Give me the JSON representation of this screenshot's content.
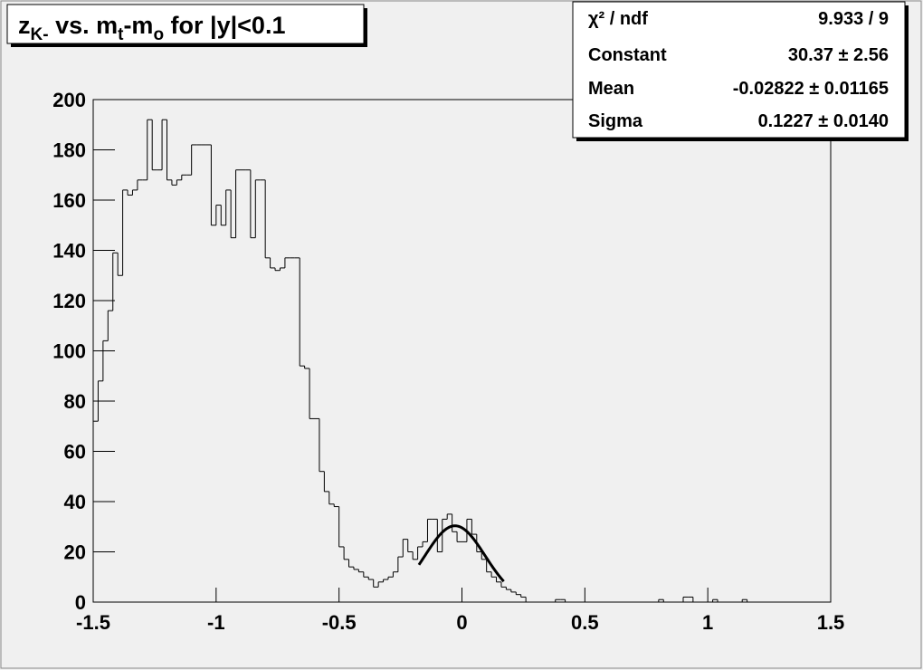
{
  "chart_data": {
    "type": "histogram",
    "title": [
      {
        "text": "z"
      },
      {
        "text": "K-",
        "sub": true
      },
      {
        "text": " vs. m"
      },
      {
        "text": "t",
        "sub": true
      },
      {
        "text": "-m"
      },
      {
        "text": "o",
        "sub": true
      },
      {
        "text": " for |y|<0.1"
      }
    ],
    "bins": [
      -1.5,
      -1.48,
      -1.46,
      -1.44,
      -1.42,
      -1.4,
      -1.38,
      -1.36,
      -1.34,
      -1.32,
      -1.3,
      -1.28,
      -1.26,
      -1.24,
      -1.22,
      -1.2,
      -1.18,
      -1.16,
      -1.14,
      -1.12,
      -1.1,
      -1.08,
      -1.06,
      -1.04,
      -1.02,
      -1,
      -0.98,
      -0.96,
      -0.94,
      -0.92,
      -0.9,
      -0.88,
      -0.86,
      -0.84,
      -0.82,
      -0.8,
      -0.78,
      -0.76,
      -0.74,
      -0.72,
      -0.7,
      -0.68,
      -0.66,
      -0.64,
      -0.62,
      -0.6,
      -0.58,
      -0.56,
      -0.54,
      -0.52,
      -0.5,
      -0.48,
      -0.46,
      -0.44,
      -0.42,
      -0.4,
      -0.38,
      -0.36,
      -0.34,
      -0.32,
      -0.3,
      -0.28,
      -0.26,
      -0.24,
      -0.22,
      -0.2,
      -0.18,
      -0.16,
      -0.14,
      -0.12,
      -0.1,
      -0.08,
      -0.06,
      -0.04,
      -0.02,
      0,
      0.02,
      0.04,
      0.06,
      0.08,
      0.1,
      0.12,
      0.14,
      0.16,
      0.18,
      0.2,
      0.22,
      0.24,
      0.26,
      0.28,
      0.3,
      0.32,
      0.34,
      0.36,
      0.38,
      0.4,
      0.42,
      0.44,
      0.46,
      0.48,
      0.5,
      0.52,
      0.54,
      0.56,
      0.58,
      0.6,
      0.62,
      0.64,
      0.66,
      0.68,
      0.7,
      0.72,
      0.74,
      0.76,
      0.78,
      0.8,
      0.82,
      0.84,
      0.86,
      0.88,
      0.9,
      0.92,
      0.94,
      0.96,
      0.98,
      1,
      1.02,
      1.04,
      1.06,
      1.08,
      1.1,
      1.12,
      1.14,
      1.16,
      1.18,
      1.2,
      1.22,
      1.24,
      1.26,
      1.28,
      1.3,
      1.32,
      1.34,
      1.36,
      1.38,
      1.4,
      1.42,
      1.44,
      1.46,
      1.48,
      1.5
    ],
    "values": [
      72,
      88,
      104,
      116,
      139,
      130,
      164,
      162,
      164,
      168,
      168,
      192,
      172,
      172,
      192,
      168,
      166,
      168,
      170,
      170,
      182,
      182,
      182,
      182,
      150,
      158,
      150,
      164,
      145,
      172,
      172,
      172,
      145,
      168,
      168,
      137,
      133,
      132,
      133,
      137,
      137,
      137,
      94,
      93,
      73,
      73,
      52,
      44,
      39,
      38,
      22,
      17,
      14,
      13,
      12,
      10,
      9,
      6,
      8,
      9,
      10,
      12,
      18,
      25,
      20,
      17,
      22,
      24,
      33,
      33,
      20,
      33,
      35,
      28,
      24,
      24,
      33,
      27,
      20,
      17,
      12,
      10,
      8,
      6,
      5,
      4,
      3,
      2,
      0,
      0,
      0,
      0,
      0,
      0,
      1,
      1,
      0,
      0,
      0,
      0,
      0,
      0,
      0,
      0,
      0,
      0,
      0,
      0,
      0,
      0,
      0,
      0,
      0,
      0,
      0,
      1,
      0,
      0,
      0,
      0,
      2,
      2,
      0,
      0,
      0,
      0,
      1,
      0,
      0,
      0,
      0,
      0,
      1,
      0,
      0,
      0,
      0,
      0,
      0,
      0,
      0,
      0,
      0,
      0,
      0,
      0,
      0,
      0,
      0,
      0
    ],
    "color": "#000000",
    "xlim": [
      -1.5,
      1.5
    ],
    "xticks": [
      -1.5,
      -1,
      -0.5,
      0,
      0.5,
      1,
      1.5
    ],
    "ylim": [
      0,
      200
    ],
    "yticks": [
      0,
      20,
      40,
      60,
      80,
      100,
      120,
      140,
      160,
      180,
      200
    ],
    "fit": {
      "range": [
        -0.175,
        0.17
      ]
    },
    "stats": [
      {
        "name": "χ² / ndf",
        "value_label": "9.933 / 9"
      },
      {
        "name": "Constant",
        "value": 30.37,
        "error": 2.56,
        "value_label": "30.37 ± 2.56"
      },
      {
        "name": "Mean",
        "value": -0.02822,
        "error": 0.01165,
        "value_label": "-0.02822 ± 0.01165"
      },
      {
        "name": "Sigma",
        "value": 0.1227,
        "error": 0.014,
        "value_label": "0.1227 ± 0.0140"
      }
    ]
  }
}
